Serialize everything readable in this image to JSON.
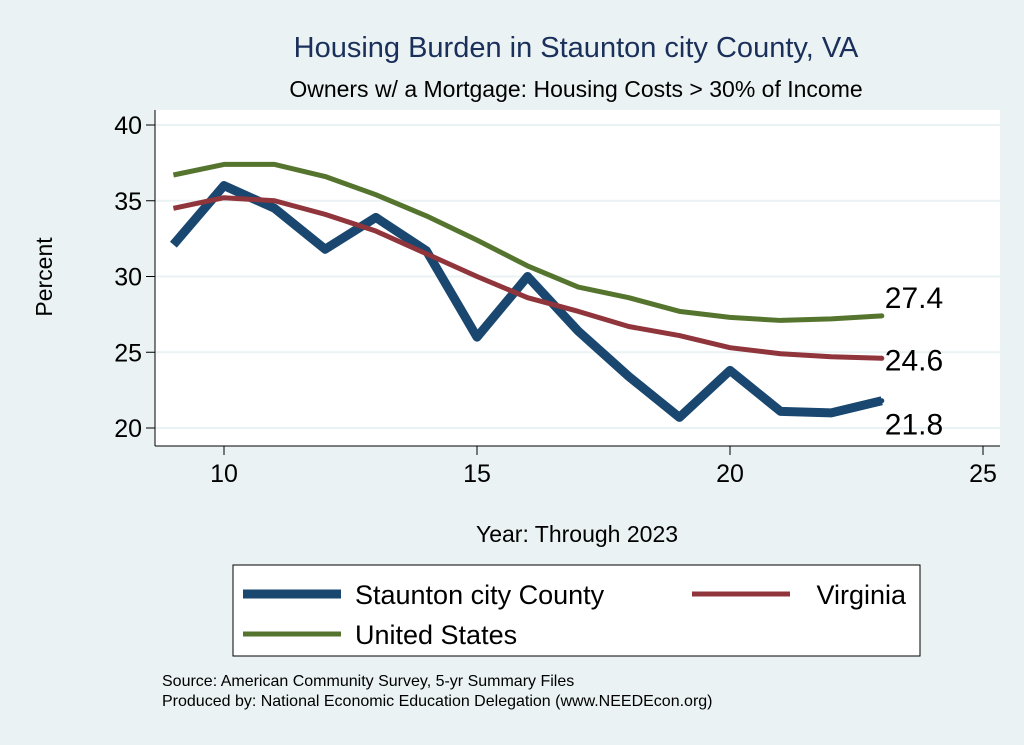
{
  "chart_data": {
    "type": "line",
    "title": "Housing Burden in Staunton city County, VA",
    "subtitle": "Owners w/ a Mortgage: Housing Costs > 30% of Income",
    "xlabel": "Year: Through 2023",
    "ylabel": "Percent",
    "xlim": [
      9,
      25
    ],
    "ylim": [
      20,
      40
    ],
    "xticks": [
      10,
      15,
      20,
      25
    ],
    "yticks": [
      20,
      25,
      30,
      35,
      40
    ],
    "grid": true,
    "legend_position": "bottom",
    "x": [
      9,
      10,
      11,
      12,
      13,
      14,
      15,
      16,
      17,
      18,
      19,
      20,
      21,
      22,
      23
    ],
    "series": [
      {
        "name": "Staunton city County",
        "color": "#1a476f",
        "end_label": "21.8",
        "values": [
          32.1,
          36.0,
          34.5,
          31.8,
          33.9,
          31.7,
          26.0,
          30.0,
          26.4,
          23.4,
          20.7,
          23.8,
          21.1,
          21.0,
          21.8
        ]
      },
      {
        "name": "Virginia",
        "color": "#90353b",
        "end_label": "24.6",
        "values": [
          34.5,
          35.2,
          35.0,
          34.1,
          33.0,
          31.5,
          30.0,
          28.6,
          27.7,
          26.7,
          26.1,
          25.3,
          24.9,
          24.7,
          24.6
        ]
      },
      {
        "name": "United States",
        "color": "#55752f",
        "end_label": "27.4",
        "values": [
          36.7,
          37.4,
          37.4,
          36.6,
          35.4,
          34.0,
          32.4,
          30.7,
          29.3,
          28.6,
          27.7,
          27.3,
          27.1,
          27.2,
          27.4
        ]
      }
    ],
    "notes": [
      "Source: American Community Survey, 5-yr Summary Files",
      "Produced by: National Economic Education Delegation (www.NEEDEcon.org)"
    ]
  }
}
